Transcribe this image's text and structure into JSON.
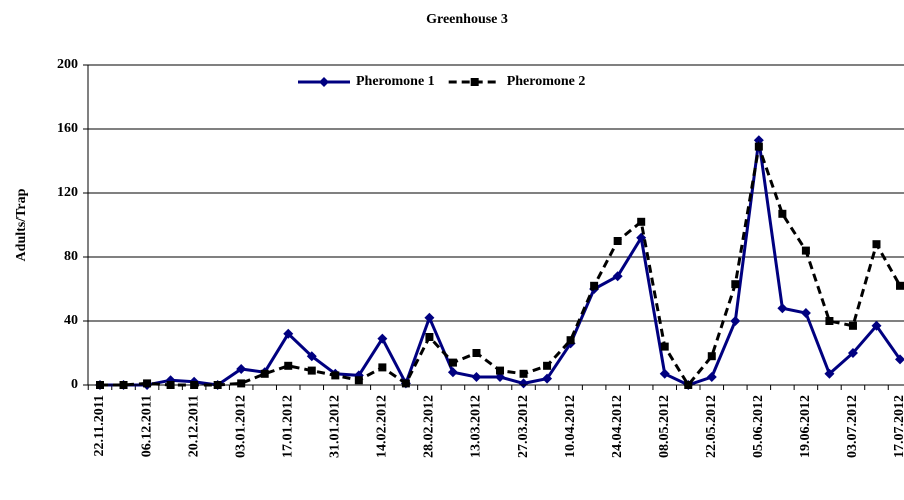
{
  "chart_data": {
    "type": "line",
    "title": "Greenhouse   3",
    "ylabel": "Adults/Trap",
    "categories": [
      "22.11.2011",
      null,
      "06.12.2011",
      null,
      "20.12.2011",
      null,
      "03.01.2012",
      null,
      "17.01.2012",
      null,
      "31.01.2012",
      null,
      "14.02.2012",
      null,
      "28.02.2012",
      null,
      "13.03.2012",
      null,
      "27.03.2012",
      null,
      "10.04.2012",
      null,
      "24.04.2012",
      null,
      "08.05.2012",
      null,
      "22.05.2012",
      null,
      "05.06.2012",
      null,
      "19.06.2012",
      null,
      "03.07.2012",
      null,
      "17.07.2012"
    ],
    "series": [
      {
        "name": "Pheromone 1",
        "color": "#000080",
        "dash": false,
        "marker": "diamond",
        "values": [
          0,
          0,
          0,
          3,
          2,
          0,
          10,
          8,
          32,
          18,
          7,
          6,
          29,
          1,
          42,
          8,
          5,
          5,
          1,
          4,
          26,
          60,
          68,
          92,
          7,
          0,
          5,
          40,
          153,
          48,
          45,
          7,
          20,
          37,
          16
        ]
      },
      {
        "name": "Pheromone 2",
        "color": "#000000",
        "dash": true,
        "marker": "square",
        "values": [
          0,
          0,
          1,
          0,
          0,
          0,
          1,
          7,
          12,
          9,
          6,
          3,
          11,
          1,
          30,
          14,
          20,
          9,
          7,
          12,
          28,
          62,
          90,
          102,
          24,
          0,
          18,
          63,
          149,
          107,
          84,
          40,
          37,
          88,
          62
        ]
      }
    ],
    "ylim": [
      0,
      200
    ],
    "yticks": [
      0,
      40,
      80,
      120,
      160,
      200
    ],
    "grid": true,
    "legend": "top"
  }
}
